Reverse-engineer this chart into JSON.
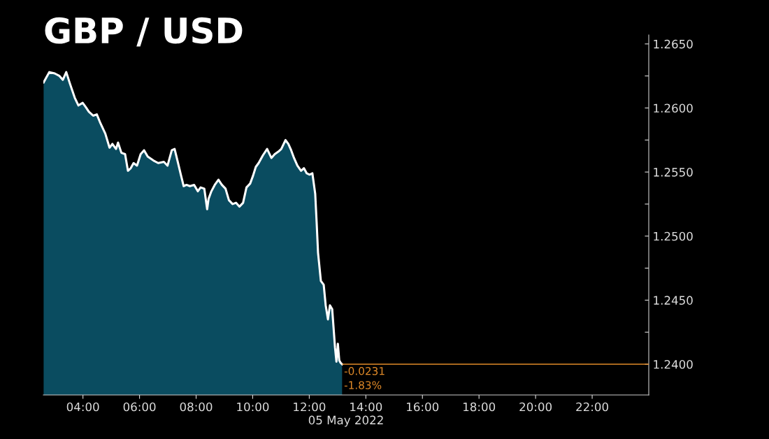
{
  "chart_data": {
    "type": "area",
    "title": "GBP / USD",
    "xlabel": "05 May 2022",
    "x": [
      2.61,
      2.71,
      2.81,
      3.0,
      3.17,
      3.29,
      3.41,
      3.54,
      3.71,
      3.84,
      3.99,
      4.09,
      4.21,
      4.36,
      4.49,
      4.62,
      4.79,
      4.94,
      5.04,
      5.17,
      5.24,
      5.36,
      5.49,
      5.59,
      5.69,
      5.79,
      5.91,
      6.04,
      6.16,
      6.29,
      6.49,
      6.66,
      6.86,
      6.99,
      7.14,
      7.24,
      7.34,
      7.46,
      7.56,
      7.66,
      7.78,
      7.93,
      8.06,
      8.16,
      8.29,
      8.39,
      8.44,
      8.54,
      8.66,
      8.79,
      8.91,
      9.04,
      9.16,
      9.29,
      9.41,
      9.53,
      9.66,
      9.78,
      9.91,
      10.01,
      10.11,
      10.21,
      10.36,
      10.51,
      10.66,
      10.78,
      10.91,
      11.01,
      11.16,
      11.26,
      11.36,
      11.46,
      11.58,
      11.71,
      11.81,
      11.91,
      12.01,
      12.11,
      12.21,
      12.26,
      12.31,
      12.41,
      12.51,
      12.58,
      12.66,
      12.73,
      12.81,
      12.91,
      12.96,
      13.01,
      13.06,
      13.11,
      13.16
    ],
    "series": [
      {
        "color": "#0a4c60",
        "values": [
          1.262,
          1.2624,
          1.2628,
          1.2627,
          1.2625,
          1.2622,
          1.2628,
          1.2619,
          1.2608,
          1.2602,
          1.2604,
          1.2601,
          1.2597,
          1.2594,
          1.2595,
          1.2588,
          1.258,
          1.2569,
          1.2572,
          1.2568,
          1.2573,
          1.2565,
          1.2564,
          1.2551,
          1.2553,
          1.2557,
          1.2555,
          1.2564,
          1.2567,
          1.2562,
          1.2559,
          1.2557,
          1.2558,
          1.2555,
          1.2567,
          1.2568,
          1.2559,
          1.2548,
          1.2539,
          1.254,
          1.2539,
          1.254,
          1.2535,
          1.2538,
          1.2537,
          1.2521,
          1.2529,
          1.2535,
          1.254,
          1.2544,
          1.254,
          1.2537,
          1.2528,
          1.2525,
          1.2526,
          1.2523,
          1.2526,
          1.2538,
          1.2541,
          1.2547,
          1.2554,
          1.2557,
          1.2563,
          1.2568,
          1.2561,
          1.2564,
          1.2566,
          1.2568,
          1.2575,
          1.2572,
          1.2567,
          1.2561,
          1.2555,
          1.2551,
          1.2553,
          1.2549,
          1.2548,
          1.2549,
          1.2533,
          1.2511,
          1.2487,
          1.2465,
          1.2462,
          1.2446,
          1.2435,
          1.2446,
          1.2443,
          1.2413,
          1.2402,
          1.2416,
          1.2403,
          1.2401,
          1.24
        ]
      }
    ],
    "xlim": [
      2.6,
      24
    ],
    "xticks": [
      {
        "value": 4,
        "label": "04:00"
      },
      {
        "value": 6,
        "label": "06:00"
      },
      {
        "value": 8,
        "label": "08:00"
      },
      {
        "value": 10,
        "label": "10:00"
      },
      {
        "value": 12,
        "label": "12:00"
      },
      {
        "value": 14,
        "label": "14:00"
      },
      {
        "value": 16,
        "label": "16:00"
      },
      {
        "value": 18,
        "label": "18:00"
      },
      {
        "value": 20,
        "label": "20:00"
      },
      {
        "value": 22,
        "label": "22:00"
      }
    ],
    "ylim": [
      1.2376,
      1.2657
    ],
    "yticks": [
      {
        "value": 1.24,
        "label": "1.2400"
      },
      {
        "value": 1.2425,
        "label": null
      },
      {
        "value": 1.245,
        "label": "1.2450"
      },
      {
        "value": 1.2475,
        "label": null
      },
      {
        "value": 1.25,
        "label": "1.2500"
      },
      {
        "value": 1.2525,
        "label": null
      },
      {
        "value": 1.255,
        "label": "1.2550"
      },
      {
        "value": 1.2575,
        "label": null
      },
      {
        "value": 1.26,
        "label": "1.2600"
      },
      {
        "value": 1.2625,
        "label": null
      },
      {
        "value": 1.265,
        "label": "1.2650"
      }
    ],
    "ref_lines": [
      {
        "axis": "y",
        "value": 1.24,
        "color": "#e08a28"
      }
    ],
    "annotations": [
      {
        "text": "-0.0231",
        "x": 13.16,
        "y": 1.24
      },
      {
        "text": "-1.83%",
        "x": 13.16,
        "y": 1.24
      }
    ],
    "grid": false,
    "legend": false
  }
}
